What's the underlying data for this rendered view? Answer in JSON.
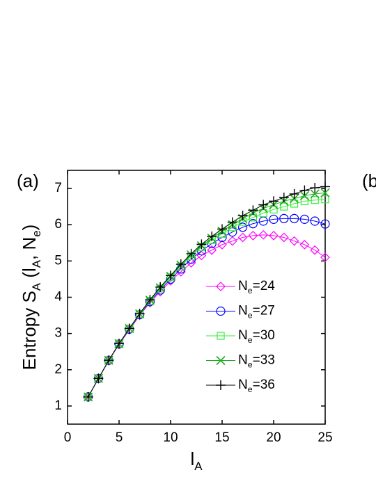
{
  "chart_data": {
    "type": "line",
    "panel_label": "(a)",
    "next_panel_label": "(b",
    "xlabel": "lA",
    "ylabel": "Entropy SA (lA, Ne)",
    "x": [
      2,
      3,
      4,
      5,
      6,
      7,
      8,
      9,
      10,
      11,
      12,
      13,
      14,
      15,
      16,
      17,
      18,
      19,
      20,
      21,
      22,
      23,
      24,
      25
    ],
    "xlim": [
      0,
      25
    ],
    "xticks": [
      0,
      5,
      10,
      15,
      20,
      25
    ],
    "ylim": [
      0.5,
      7.5
    ],
    "yticks": [
      1,
      2,
      3,
      4,
      5,
      6,
      7
    ],
    "series": [
      {
        "name": "Ne=24",
        "color": "#ff00ff",
        "marker": "diamond",
        "values": [
          1.25,
          1.75,
          2.25,
          2.7,
          3.1,
          3.5,
          3.85,
          4.15,
          4.45,
          4.7,
          4.95,
          5.15,
          5.3,
          5.45,
          5.55,
          5.65,
          5.7,
          5.72,
          5.7,
          5.65,
          5.55,
          5.45,
          5.3,
          5.1
        ]
      },
      {
        "name": "Ne=27",
        "color": "#0000ff",
        "marker": "circle",
        "values": [
          1.25,
          1.76,
          2.26,
          2.71,
          3.12,
          3.52,
          3.88,
          4.2,
          4.5,
          4.78,
          5.05,
          5.28,
          5.48,
          5.65,
          5.8,
          5.93,
          6.03,
          6.1,
          6.15,
          6.17,
          6.17,
          6.15,
          6.1,
          6.02
        ]
      },
      {
        "name": "Ne=30",
        "color": "#33ee33",
        "marker": "square",
        "values": [
          1.25,
          1.76,
          2.26,
          2.72,
          3.13,
          3.53,
          3.9,
          4.24,
          4.55,
          4.85,
          5.13,
          5.38,
          5.58,
          5.75,
          5.93,
          6.08,
          6.2,
          6.32,
          6.42,
          6.5,
          6.58,
          6.65,
          6.68,
          6.7
        ]
      },
      {
        "name": "Ne=33",
        "color": "#22aa22",
        "marker": "x",
        "values": [
          1.25,
          1.76,
          2.26,
          2.72,
          3.14,
          3.54,
          3.92,
          4.26,
          4.58,
          4.89,
          5.17,
          5.42,
          5.63,
          5.82,
          6.0,
          6.17,
          6.32,
          6.45,
          6.55,
          6.65,
          6.72,
          6.8,
          6.85,
          6.88
        ]
      },
      {
        "name": "Ne=36",
        "color": "#000000",
        "marker": "plus",
        "values": [
          1.25,
          1.76,
          2.26,
          2.72,
          3.14,
          3.55,
          3.93,
          4.28,
          4.6,
          4.91,
          5.2,
          5.46,
          5.68,
          5.88,
          6.07,
          6.25,
          6.4,
          6.55,
          6.65,
          6.75,
          6.85,
          6.95,
          7.02,
          7.05
        ]
      }
    ]
  }
}
